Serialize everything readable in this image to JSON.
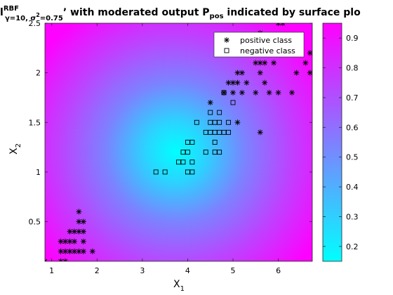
{
  "chart_data": {
    "type": "scatter",
    "title": {
      "lead": "l",
      "lead_sup": "RBF",
      "lead_sub": "γ=10, σ",
      "lead_sub_sup": "2",
      "lead_sub_tail": "=0.75",
      "middle": "’ with moderated output P",
      "p_sub": "pos",
      "tail": " indicated by surface plo"
    },
    "xlabel": {
      "base": "X",
      "sub": "1"
    },
    "ylabel": {
      "base": "X",
      "sub": "2"
    },
    "xlim": [
      0.85,
      6.75
    ],
    "ylim": [
      0.1,
      2.5
    ],
    "xticks": [
      1,
      2,
      3,
      4,
      5,
      6
    ],
    "yticks": [
      0.5,
      1,
      1.5,
      2,
      2.5
    ],
    "colorbar": {
      "range": [
        0.15,
        0.95
      ],
      "ticks": [
        0.2,
        0.3,
        0.4,
        0.5,
        0.6,
        0.7,
        0.8,
        0.9
      ],
      "colormap": "cool",
      "low_color": "#00ffff",
      "high_color": "#ff00ff"
    },
    "surface_center": [
      4.3,
      1.25
    ],
    "legend": {
      "placement": "top-right",
      "entries": [
        "positive class",
        "negative class"
      ]
    },
    "series": [
      {
        "name": "positive class",
        "marker": "asterisk",
        "points": [
          [
            0.85,
            0.1
          ],
          [
            1.2,
            0.1
          ],
          [
            1.3,
            0.1
          ],
          [
            1.2,
            0.2
          ],
          [
            1.3,
            0.2
          ],
          [
            1.4,
            0.2
          ],
          [
            1.5,
            0.2
          ],
          [
            1.6,
            0.2
          ],
          [
            1.7,
            0.2
          ],
          [
            1.9,
            0.2
          ],
          [
            1.2,
            0.3
          ],
          [
            1.3,
            0.3
          ],
          [
            1.4,
            0.3
          ],
          [
            1.5,
            0.3
          ],
          [
            1.7,
            0.3
          ],
          [
            1.4,
            0.4
          ],
          [
            1.5,
            0.4
          ],
          [
            1.6,
            0.4
          ],
          [
            1.7,
            0.4
          ],
          [
            1.6,
            0.5
          ],
          [
            1.7,
            0.5
          ],
          [
            1.6,
            0.6
          ],
          [
            4.5,
            1.7
          ],
          [
            5.1,
            1.5
          ],
          [
            5.6,
            1.4
          ],
          [
            4.8,
            1.8
          ],
          [
            5.0,
            1.8
          ],
          [
            5.2,
            1.8
          ],
          [
            5.5,
            1.8
          ],
          [
            5.8,
            1.8
          ],
          [
            6.0,
            1.8
          ],
          [
            6.3,
            1.8
          ],
          [
            4.9,
            1.9
          ],
          [
            5.0,
            1.9
          ],
          [
            5.1,
            1.9
          ],
          [
            5.3,
            1.9
          ],
          [
            5.7,
            1.9
          ],
          [
            5.1,
            2.0
          ],
          [
            5.2,
            2.0
          ],
          [
            5.6,
            2.0
          ],
          [
            6.4,
            2.0
          ],
          [
            6.7,
            2.0
          ],
          [
            5.5,
            2.1
          ],
          [
            5.6,
            2.1
          ],
          [
            5.7,
            2.1
          ],
          [
            5.9,
            2.1
          ],
          [
            6.6,
            2.1
          ],
          [
            6.1,
            2.3
          ],
          [
            6.3,
            2.3
          ],
          [
            6.0,
            2.5
          ],
          [
            6.1,
            2.5
          ],
          [
            5.2,
            2.3
          ],
          [
            5.6,
            2.4
          ],
          [
            6.7,
            2.2
          ]
        ]
      },
      {
        "name": "negative class",
        "marker": "square",
        "points": [
          [
            3.3,
            1.0
          ],
          [
            3.5,
            1.0
          ],
          [
            4.0,
            1.0
          ],
          [
            4.1,
            1.0
          ],
          [
            3.8,
            1.1
          ],
          [
            3.9,
            1.1
          ],
          [
            4.1,
            1.1
          ],
          [
            3.9,
            1.2
          ],
          [
            4.0,
            1.2
          ],
          [
            4.4,
            1.2
          ],
          [
            4.6,
            1.2
          ],
          [
            4.7,
            1.2
          ],
          [
            4.0,
            1.3
          ],
          [
            4.1,
            1.3
          ],
          [
            4.6,
            1.3
          ],
          [
            4.4,
            1.4
          ],
          [
            4.5,
            1.4
          ],
          [
            4.6,
            1.4
          ],
          [
            4.7,
            1.4
          ],
          [
            4.8,
            1.4
          ],
          [
            4.9,
            1.4
          ],
          [
            4.2,
            1.5
          ],
          [
            4.5,
            1.5
          ],
          [
            4.6,
            1.5
          ],
          [
            4.7,
            1.5
          ],
          [
            4.9,
            1.5
          ],
          [
            4.5,
            1.6
          ],
          [
            4.7,
            1.6
          ],
          [
            4.8,
            1.8
          ],
          [
            5.0,
            1.7
          ]
        ]
      }
    ]
  }
}
